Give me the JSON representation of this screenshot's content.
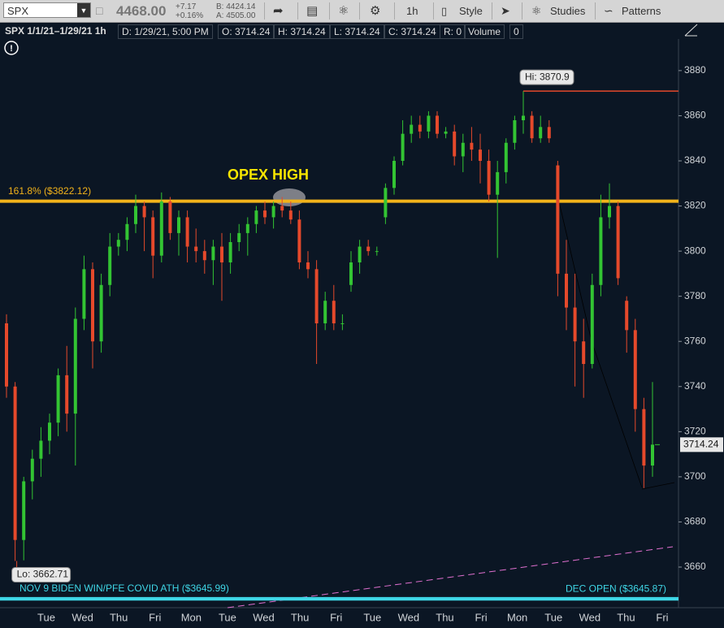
{
  "toolbar": {
    "symbol": "SPX",
    "last": "4468.00",
    "change": "+7.17",
    "change_pct": "+0.16%",
    "bid": "B: 4424.14",
    "ask": "A: 4505.00",
    "interval": "1h",
    "style": "Style",
    "studies": "Studies",
    "patterns": "Patterns"
  },
  "info_bar": {
    "title": "SPX 1/1/21–1/29/21 1h",
    "date": "D: 1/29/21, 5:00 PM",
    "open": "O: 3714.24",
    "high": "H: 3714.24",
    "low": "L: 3714.24",
    "close": "C: 3714.24",
    "range": "R: 0",
    "volume_label": "Volume",
    "volume": "0"
  },
  "chart_data": {
    "type": "candlestick",
    "ylim": [
      3642,
      3894
    ],
    "yticks": [
      3660,
      3680,
      3700,
      3720,
      3740,
      3760,
      3780,
      3800,
      3820,
      3840,
      3860,
      3880
    ],
    "x_labels": [
      "Tue",
      "Wed",
      "Thu",
      "Fri",
      "Mon",
      "Tue",
      "Wed",
      "Thu",
      "Fri",
      "Tue",
      "Wed",
      "Thu",
      "Fri",
      "Mon",
      "Tue",
      "Wed",
      "Thu",
      "Fri"
    ],
    "up_color": "#33c433",
    "down_color": "#e5492b",
    "open": [
      3768,
      3740,
      3672,
      3698,
      3708,
      3716,
      3724,
      3745,
      3728,
      3770,
      3792,
      3760,
      3785,
      3802,
      3805,
      3812,
      3820,
      3815,
      3798,
      3822,
      3808,
      3815,
      3802,
      3800,
      3796,
      3802,
      3795,
      3804,
      3808,
      3812,
      3818,
      3815,
      3820,
      3818,
      3814,
      3795,
      3792,
      3768,
      3778,
      3768,
      3785,
      3795,
      3802,
      3800,
      3815,
      3828,
      3840,
      3852,
      3856,
      3853,
      3860,
      3852,
      3853,
      3842,
      3848,
      3845,
      3840,
      3825,
      3835,
      3848,
      3858,
      3860,
      3850,
      3855,
      3838,
      3790,
      3775,
      3760,
      3750,
      3785,
      3815,
      3820,
      3778,
      3765,
      3730,
      3705
    ],
    "high": [
      3772,
      3742,
      3700,
      3712,
      3722,
      3728,
      3748,
      3758,
      3775,
      3798,
      3795,
      3790,
      3808,
      3808,
      3815,
      3825,
      3822,
      3818,
      3826,
      3824,
      3818,
      3818,
      3810,
      3805,
      3805,
      3808,
      3808,
      3812,
      3815,
      3820,
      3822,
      3822,
      3824,
      3822,
      3818,
      3800,
      3796,
      3782,
      3785,
      3772,
      3800,
      3805,
      3805,
      3802,
      3830,
      3842,
      3858,
      3860,
      3860,
      3862,
      3862,
      3855,
      3856,
      3852,
      3855,
      3852,
      3845,
      3840,
      3850,
      3860,
      3870.9,
      3862,
      3860,
      3858,
      3840,
      3805,
      3790,
      3770,
      3790,
      3825,
      3830,
      3822,
      3780,
      3770,
      3735,
      3742
    ],
    "low": [
      3735,
      3662.71,
      3663,
      3690,
      3700,
      3710,
      3718,
      3720,
      3705,
      3765,
      3748,
      3755,
      3780,
      3798,
      3800,
      3808,
      3800,
      3788,
      3795,
      3805,
      3798,
      3795,
      3795,
      3790,
      3785,
      3778,
      3790,
      3800,
      3798,
      3808,
      3812,
      3810,
      3815,
      3812,
      3792,
      3788,
      3750,
      3765,
      3765,
      3765,
      3782,
      3790,
      3798,
      3798,
      3812,
      3825,
      3838,
      3848,
      3850,
      3850,
      3850,
      3850,
      3838,
      3835,
      3840,
      3830,
      3822,
      3797,
      3830,
      3845,
      3852,
      3848,
      3848,
      3848,
      3780,
      3765,
      3740,
      3735,
      3748,
      3780,
      3810,
      3785,
      3755,
      3720,
      3695,
      3700
    ],
    "close": [
      3740,
      3672,
      3698,
      3708,
      3716,
      3724,
      3745,
      3728,
      3770,
      3792,
      3760,
      3785,
      3802,
      3805,
      3812,
      3820,
      3815,
      3798,
      3822,
      3808,
      3815,
      3802,
      3800,
      3796,
      3802,
      3795,
      3804,
      3808,
      3812,
      3818,
      3815,
      3820,
      3818,
      3814,
      3795,
      3792,
      3768,
      3778,
      3768,
      3768,
      3795,
      3802,
      3800,
      3800,
      3828,
      3840,
      3852,
      3856,
      3853,
      3860,
      3852,
      3853,
      3842,
      3848,
      3845,
      3840,
      3825,
      3835,
      3848,
      3858,
      3860,
      3850,
      3855,
      3850,
      3790,
      3775,
      3760,
      3750,
      3785,
      3815,
      3820,
      3788,
      3765,
      3730,
      3705,
      3714.24
    ],
    "hi_label": "Hi: 3870.9",
    "lo_label": "Lo: 3662.71",
    "annotation": "OPEX HIGH",
    "levels": [
      {
        "value": 3822.12,
        "label": "161.8% ($3822.12)",
        "color": "#f2b31a",
        "side": "left"
      },
      {
        "value": 3645.99,
        "label": "NOV 9 BIDEN WIN/PFE COVID ATH ($3645.99)",
        "color": "#3fd6e6",
        "side": "left"
      },
      {
        "value": 3645.87,
        "label": "DEC OPEN ($3645.87)",
        "color": "#3fd6e6",
        "side": "right"
      }
    ]
  }
}
